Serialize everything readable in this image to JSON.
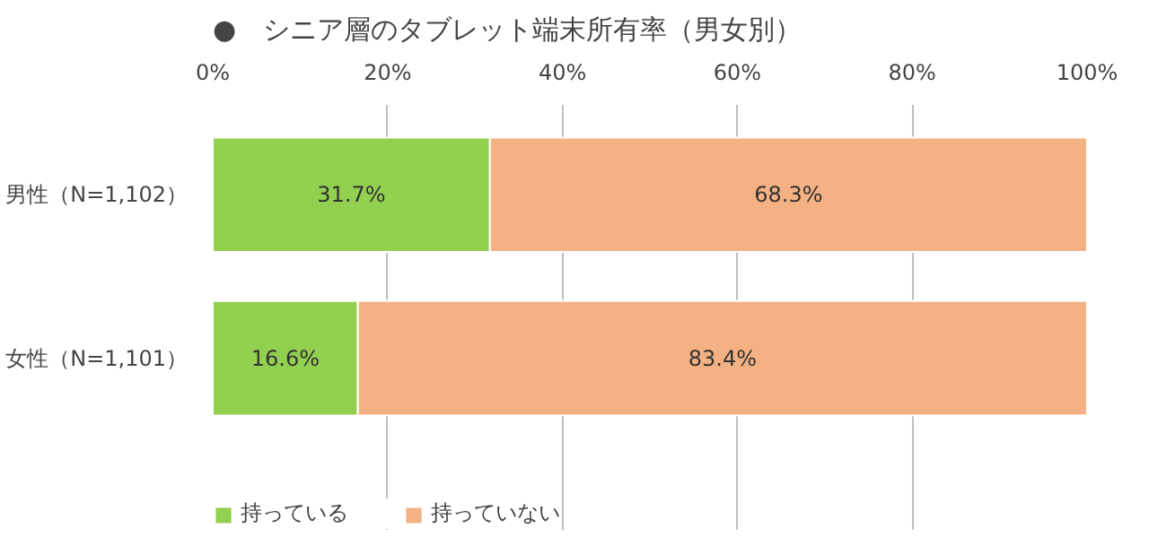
{
  "chart_data": {
    "type": "bar",
    "orientation": "horizontal",
    "stacked": true,
    "title": "●　シニア層のタブレット端末所有率（男女別）",
    "categories": [
      "男性（N=1,102）",
      "女性（N=1,101）"
    ],
    "series": [
      {
        "name": "持っている",
        "color": "#92d050",
        "values": [
          31.7,
          16.6
        ],
        "value_labels": [
          "31.7%",
          "16.6%"
        ]
      },
      {
        "name": "持っていない",
        "color": "#f4b183",
        "values": [
          68.3,
          83.4
        ],
        "value_labels": [
          "68.3%",
          "83.4%"
        ]
      }
    ],
    "xlim": [
      0,
      100
    ],
    "xticks": [
      {
        "value": 0,
        "label": "0%"
      },
      {
        "value": 20,
        "label": "20%"
      },
      {
        "value": 40,
        "label": "40%"
      },
      {
        "value": 60,
        "label": "60%"
      },
      {
        "value": 80,
        "label": "80%"
      },
      {
        "value": 100,
        "label": "100%"
      }
    ],
    "grid": "x",
    "legend": "bottom left"
  }
}
